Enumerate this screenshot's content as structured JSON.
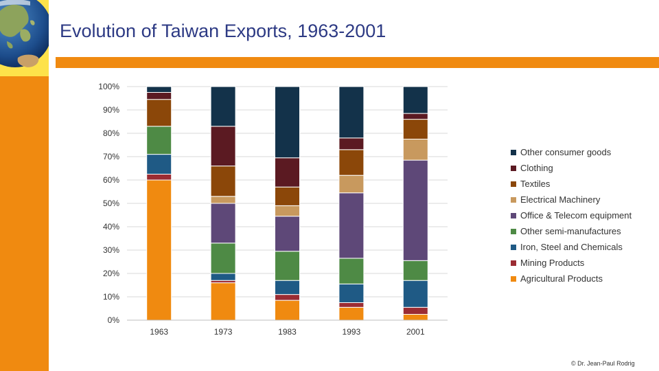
{
  "page": {
    "title": "Evolution of Taiwan Exports, 1963-2001",
    "copyright": "© Dr. Jean-Paul Rodrig"
  },
  "colors": {
    "accent": "#f08a10",
    "title": "#2d3a84",
    "globe_background": "#fde24a"
  },
  "chart_data": {
    "type": "bar",
    "stacked": true,
    "title": "",
    "xlabel": "",
    "ylabel": "",
    "ylim": [
      0,
      100
    ],
    "yticks": [
      {
        "value": 0,
        "label": "0%"
      },
      {
        "value": 10,
        "label": "10%"
      },
      {
        "value": 20,
        "label": "20%"
      },
      {
        "value": 30,
        "label": "30%"
      },
      {
        "value": 40,
        "label": "40%"
      },
      {
        "value": 50,
        "label": "50%"
      },
      {
        "value": 60,
        "label": "60%"
      },
      {
        "value": 70,
        "label": "70%"
      },
      {
        "value": 80,
        "label": "80%"
      },
      {
        "value": 90,
        "label": "90%"
      },
      {
        "value": 100,
        "label": "100%"
      }
    ],
    "categories": [
      "1963",
      "1973",
      "1983",
      "1993",
      "2001"
    ],
    "grid": true,
    "legend_position": "right",
    "series": [
      {
        "name": "Agricultural Products",
        "color": "#f08a10",
        "values": [
          60.0,
          16.0,
          8.5,
          5.5,
          2.5
        ]
      },
      {
        "name": "Mining Products",
        "color": "#9b2c33",
        "values": [
          2.5,
          1.0,
          2.5,
          2.0,
          3.0
        ]
      },
      {
        "name": "Iron, Steel and Chemicals",
        "color": "#1f5a85",
        "values": [
          8.5,
          3.0,
          6.0,
          8.0,
          11.5
        ]
      },
      {
        "name": "Other semi-manufactures",
        "color": "#4e8a45",
        "values": [
          12.0,
          13.0,
          12.5,
          11.0,
          8.5
        ]
      },
      {
        "name": "Office & Telecom equipment",
        "color": "#5e4878",
        "values": [
          0.0,
          17.0,
          15.0,
          28.0,
          43.0
        ]
      },
      {
        "name": "Electrical Machinery",
        "color": "#c8995e",
        "values": [
          0.0,
          3.0,
          4.5,
          7.5,
          9.0
        ]
      },
      {
        "name": "Textiles",
        "color": "#8b4709",
        "values": [
          11.5,
          13.0,
          8.0,
          11.0,
          8.5
        ]
      },
      {
        "name": "Clothing",
        "color": "#5b1a22",
        "values": [
          3.0,
          17.0,
          12.5,
          5.0,
          2.5
        ]
      },
      {
        "name": "Other consumer goods",
        "color": "#13324a",
        "values": [
          2.5,
          17.0,
          30.5,
          22.0,
          11.5
        ]
      }
    ]
  }
}
